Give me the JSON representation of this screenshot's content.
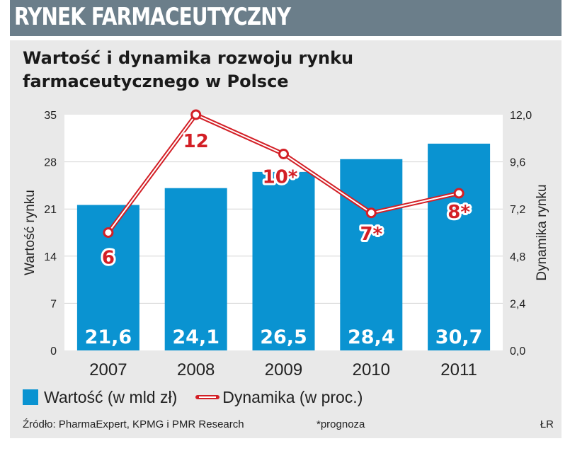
{
  "header": {
    "title": "RYNEK FARMACEUTYCZNY"
  },
  "colors": {
    "header_bg": "#6b7e8a",
    "panel_bg": "#e9e9e9",
    "bar": "#0a93d1",
    "line": "#d31f26",
    "text": "#1a1a1a"
  },
  "chart_data": {
    "type": "bar",
    "title_lines": [
      "Wartość i dynamika rozwoju rynku",
      "farmaceutycznego w Polsce"
    ],
    "categories": [
      "2007",
      "2008",
      "2009",
      "2010",
      "2011"
    ],
    "series": [
      {
        "name": "Wartość (w mld zł)",
        "type": "bar",
        "axis": "left",
        "color": "#0a93d1",
        "values": [
          21.6,
          24.1,
          26.5,
          28.4,
          30.7
        ],
        "labels": [
          "21,6",
          "24,1",
          "26,5",
          "28,4",
          "30,7"
        ]
      },
      {
        "name": "Dynamika (w proc.)",
        "type": "line",
        "axis": "right",
        "color": "#d31f26",
        "values": [
          6,
          12,
          10,
          7,
          8
        ],
        "labels": [
          "6",
          "12",
          "10*",
          "7*",
          "8*"
        ]
      }
    ],
    "ylabel": "Wartość rynku",
    "ylim": [
      0,
      35
    ],
    "yticks": [
      "0",
      "7",
      "14",
      "21",
      "28",
      "35"
    ],
    "y2label": "Dynamika rynku",
    "y2lim": [
      0,
      12
    ],
    "y2ticks": [
      "0,0",
      "2,4",
      "4,8",
      "7,2",
      "9,6",
      "12,0"
    ],
    "grid": true,
    "legend_position": "bottom"
  },
  "legend": {
    "bar_label": "Wartość (w mld zł)",
    "line_label": "Dynamika (w proc.)"
  },
  "footer": {
    "source": "Źródło: PharmaExpert, KPMG i PMR Research",
    "note": "*prognoza",
    "credit": "ŁR"
  }
}
